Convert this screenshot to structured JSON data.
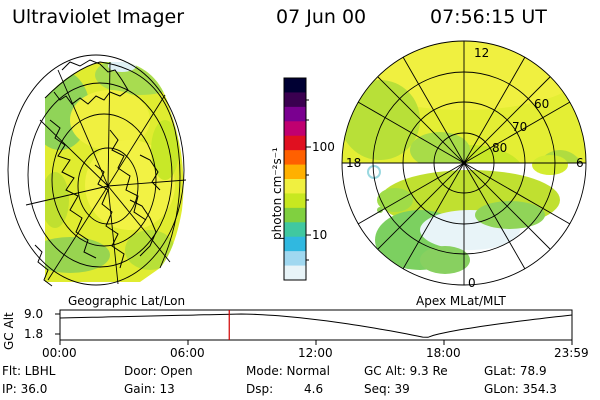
{
  "header": {
    "title": "Ultraviolet Imager",
    "date": "07 Jun 00",
    "time": "07:56:15 UT"
  },
  "colorbar": {
    "unit_label": "photon cm⁻²s⁻¹",
    "ticks": [
      "100",
      "10"
    ],
    "colors": [
      "#000033",
      "#3a0050",
      "#7a0090",
      "#c00070",
      "#e01020",
      "#ff6000",
      "#ffb000",
      "#f0f040",
      "#c8e820",
      "#80d040",
      "#40c8a0",
      "#30b8e0",
      "#a0d8f0",
      "#e8f4f8"
    ]
  },
  "geo_panel": {
    "label": "Geographic Lat/Lon"
  },
  "polar_panel": {
    "label": "Apex MLat/MLT",
    "mlt_labels": {
      "top": "12",
      "left": "18",
      "right": "6",
      "bottom": "0"
    },
    "lat_labels": [
      "60",
      "70",
      "80"
    ]
  },
  "altitude_plot": {
    "ylabel": "GC Alt",
    "yticks": [
      "9.0",
      "1.8"
    ],
    "xticks": [
      "00:00",
      "06:00",
      "12:00",
      "18:00",
      "23:59"
    ],
    "marker_time": "07:56",
    "marker_color": "#d00000"
  },
  "info": {
    "flt": "Flt: LBHL",
    "ip": "IP: 36.0",
    "door": "Door: Open",
    "gain": "Gain: 13",
    "mode": "Mode: Normal",
    "dsp_label": "Dsp:",
    "dsp_value": "4.6",
    "gcalt": "GC Alt: 9.3 Re",
    "seq": "Seq: 39",
    "glat": "GLat: 78.9",
    "glon": "GLon: 354.3"
  }
}
